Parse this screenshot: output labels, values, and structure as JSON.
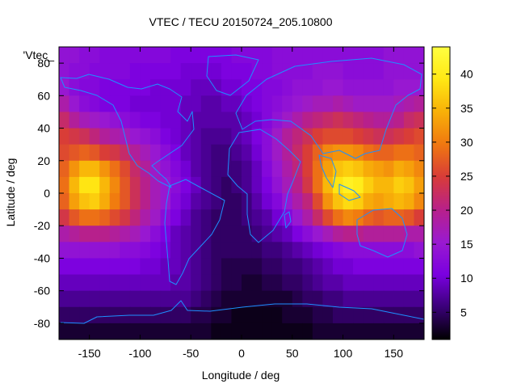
{
  "chart_data": {
    "type": "heatmap",
    "title": "VTEC / TECU 20150724_205.10800",
    "xlabel": "Longitude / deg",
    "ylabel": "Latitude / deg",
    "series_key_label": "'Vtec_",
    "xlim": [
      -180,
      180
    ],
    "ylim": [
      -90,
      90
    ],
    "x_ticks": [
      -150,
      -100,
      -50,
      0,
      50,
      100,
      150
    ],
    "y_ticks": [
      -80,
      -60,
      -40,
      -20,
      0,
      20,
      40,
      60,
      80
    ],
    "colorbar": {
      "range": [
        1,
        44
      ],
      "ticks": [
        5,
        10,
        15,
        20,
        25,
        30,
        35,
        40
      ],
      "palette": [
        "#000000",
        "#3a0078",
        "#7a00e0",
        "#9a1ad0",
        "#b8208a",
        "#d83c38",
        "#f07810",
        "#f8b008",
        "#ffe814",
        "#ffff40"
      ]
    },
    "grid": "off",
    "coastline_color": "#1e90ff",
    "lon_centers": [
      -175,
      -165,
      -155,
      -145,
      -135,
      -125,
      -115,
      -105,
      -95,
      -85,
      -75,
      -65,
      -55,
      -45,
      -35,
      -25,
      -15,
      -5,
      5,
      15,
      25,
      35,
      45,
      55,
      65,
      75,
      85,
      95,
      105,
      115,
      125,
      135,
      145,
      155,
      165,
      175
    ],
    "lat_centers": [
      85,
      75,
      65,
      55,
      45,
      35,
      25,
      15,
      5,
      -5,
      -15,
      -25,
      -35,
      -45,
      -55,
      -65,
      -75,
      -85
    ],
    "values": [
      [
        14,
        14,
        13,
        13,
        12,
        12,
        12,
        12,
        12,
        12,
        12,
        11,
        11,
        11,
        11,
        11,
        11,
        12,
        12,
        12,
        12,
        13,
        13,
        13,
        13,
        13,
        13,
        13,
        13,
        13,
        13,
        13,
        14,
        14,
        14,
        14
      ],
      [
        14,
        13,
        13,
        12,
        12,
        12,
        12,
        11,
        11,
        11,
        11,
        11,
        10,
        10,
        10,
        10,
        11,
        11,
        11,
        12,
        12,
        13,
        13,
        13,
        13,
        14,
        14,
        14,
        13,
        13,
        13,
        13,
        14,
        14,
        14,
        14
      ],
      [
        15,
        13,
        12,
        12,
        11,
        11,
        11,
        11,
        11,
        10,
        10,
        10,
        10,
        9,
        9,
        9,
        10,
        10,
        11,
        11,
        12,
        12,
        13,
        14,
        14,
        14,
        15,
        15,
        14,
        14,
        14,
        14,
        14,
        15,
        15,
        15
      ],
      [
        18,
        15,
        13,
        12,
        11,
        11,
        11,
        10,
        10,
        10,
        10,
        10,
        9,
        9,
        8,
        8,
        9,
        9,
        10,
        11,
        12,
        13,
        14,
        15,
        16,
        17,
        17,
        18,
        17,
        16,
        16,
        16,
        16,
        17,
        18,
        19
      ],
      [
        22,
        19,
        17,
        16,
        15,
        14,
        13,
        12,
        11,
        11,
        10,
        10,
        9,
        8,
        8,
        8,
        8,
        8,
        9,
        10,
        12,
        14,
        16,
        18,
        20,
        21,
        22,
        23,
        22,
        21,
        20,
        19,
        19,
        20,
        22,
        23
      ],
      [
        25,
        24,
        23,
        21,
        19,
        18,
        17,
        15,
        14,
        13,
        11,
        10,
        9,
        8,
        7,
        7,
        7,
        8,
        9,
        11,
        13,
        16,
        19,
        21,
        23,
        25,
        26,
        26,
        26,
        25,
        24,
        23,
        23,
        24,
        25,
        26
      ],
      [
        26,
        27,
        28,
        27,
        25,
        24,
        22,
        19,
        17,
        15,
        13,
        11,
        9,
        8,
        7,
        6,
        6,
        7,
        8,
        10,
        13,
        16,
        19,
        22,
        25,
        28,
        31,
        32,
        32,
        31,
        29,
        28,
        28,
        29,
        29,
        28
      ],
      [
        28,
        32,
        35,
        35,
        32,
        29,
        26,
        22,
        19,
        16,
        14,
        12,
        10,
        8,
        7,
        6,
        6,
        6,
        7,
        9,
        12,
        15,
        18,
        21,
        25,
        29,
        33,
        36,
        37,
        36,
        34,
        33,
        32,
        34,
        33,
        31
      ],
      [
        29,
        35,
        39,
        39,
        35,
        31,
        27,
        23,
        20,
        17,
        15,
        13,
        11,
        9,
        7,
        6,
        5,
        6,
        7,
        9,
        11,
        14,
        17,
        20,
        24,
        29,
        35,
        39,
        41,
        40,
        37,
        35,
        35,
        37,
        36,
        33
      ],
      [
        28,
        33,
        36,
        37,
        34,
        30,
        27,
        23,
        20,
        17,
        15,
        12,
        10,
        8,
        7,
        6,
        5,
        5,
        6,
        8,
        10,
        12,
        15,
        18,
        21,
        26,
        32,
        36,
        38,
        37,
        34,
        33,
        34,
        35,
        34,
        31
      ],
      [
        24,
        27,
        29,
        29,
        28,
        26,
        24,
        21,
        18,
        16,
        13,
        11,
        9,
        7,
        6,
        5,
        5,
        5,
        6,
        7,
        8,
        10,
        12,
        15,
        18,
        22,
        26,
        29,
        31,
        30,
        28,
        27,
        28,
        28,
        27,
        25
      ],
      [
        18,
        19,
        20,
        20,
        20,
        19,
        18,
        17,
        15,
        13,
        11,
        9,
        8,
        7,
        6,
        5,
        5,
        5,
        5,
        6,
        7,
        8,
        9,
        11,
        13,
        15,
        17,
        19,
        20,
        20,
        19,
        19,
        19,
        19,
        18,
        18
      ],
      [
        14,
        14,
        14,
        14,
        14,
        14,
        13,
        13,
        12,
        11,
        10,
        9,
        8,
        7,
        6,
        5,
        5,
        5,
        5,
        5,
        6,
        6,
        7,
        8,
        9,
        10,
        11,
        12,
        13,
        13,
        13,
        13,
        13,
        13,
        13,
        14
      ],
      [
        11,
        11,
        11,
        11,
        11,
        11,
        11,
        11,
        10,
        10,
        9,
        9,
        8,
        7,
        6,
        5,
        4,
        4,
        4,
        4,
        5,
        5,
        6,
        6,
        7,
        8,
        9,
        10,
        10,
        11,
        11,
        11,
        11,
        11,
        11,
        11
      ],
      [
        9,
        9,
        9,
        9,
        9,
        9,
        9,
        9,
        9,
        9,
        9,
        8,
        8,
        7,
        6,
        5,
        4,
        4,
        3,
        3,
        4,
        4,
        5,
        5,
        6,
        7,
        8,
        8,
        9,
        9,
        9,
        9,
        9,
        9,
        9,
        9
      ],
      [
        7,
        7,
        7,
        7,
        7,
        7,
        7,
        7,
        7,
        7,
        7,
        7,
        7,
        6,
        5,
        4,
        3,
        3,
        3,
        3,
        3,
        3,
        3,
        4,
        5,
        5,
        6,
        6,
        7,
        7,
        7,
        7,
        7,
        7,
        7,
        7
      ],
      [
        5,
        5,
        5,
        5,
        5,
        5,
        5,
        5,
        5,
        5,
        5,
        5,
        5,
        4,
        4,
        3,
        3,
        2,
        2,
        2,
        2,
        2,
        3,
        3,
        3,
        4,
        4,
        5,
        5,
        5,
        5,
        5,
        5,
        5,
        5,
        5
      ],
      [
        3,
        3,
        3,
        3,
        3,
        3,
        3,
        3,
        3,
        3,
        3,
        3,
        3,
        3,
        3,
        2,
        2,
        2,
        2,
        2,
        2,
        2,
        2,
        2,
        2,
        3,
        3,
        3,
        3,
        3,
        3,
        3,
        3,
        3,
        3,
        3
      ]
    ]
  }
}
